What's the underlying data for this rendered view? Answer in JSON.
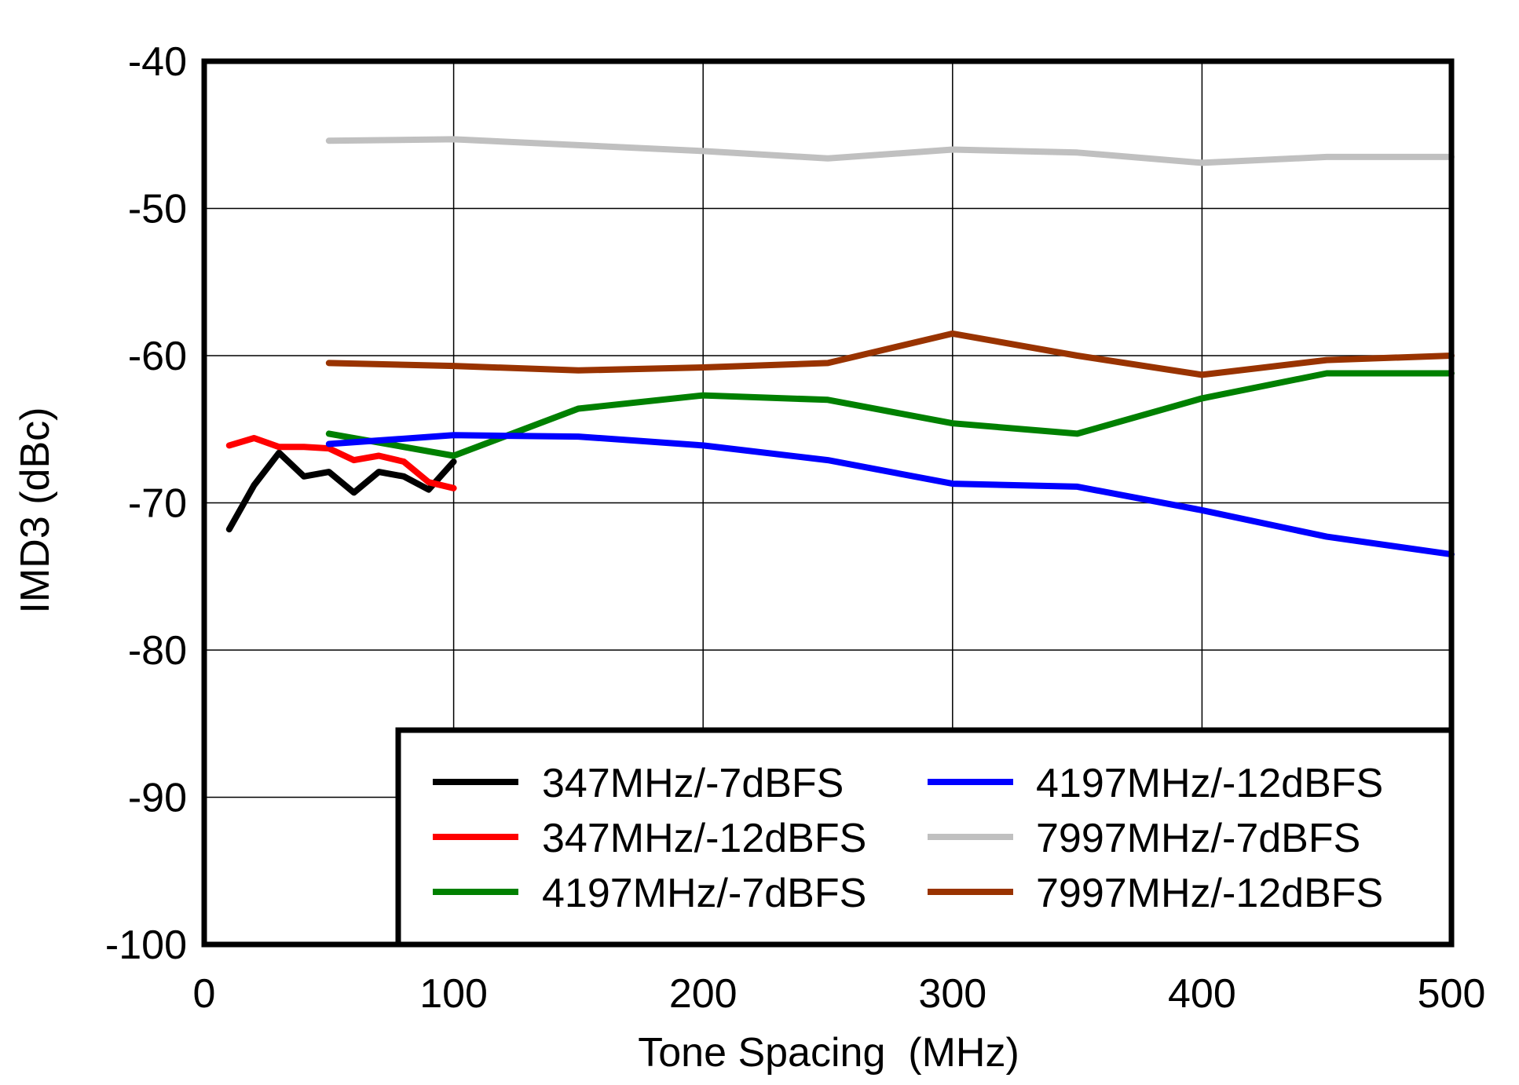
{
  "chart_data": {
    "type": "line",
    "title": "",
    "xlabel": "Tone Spacing  (MHz)",
    "ylabel": "IMD3 (dBc)",
    "xlim": [
      0,
      500
    ],
    "ylim": [
      -100,
      -40
    ],
    "xticks": [
      "0",
      "100",
      "200",
      "300",
      "400",
      "500"
    ],
    "yticks": [
      "-40",
      "-50",
      "-60",
      "-70",
      "-80",
      "-90",
      "-100"
    ],
    "grid": true,
    "legend_position": "lower right",
    "series": [
      {
        "name": "347MHz/-7dBFS",
        "color": "#000000",
        "x": [
          10,
          20,
          30,
          40,
          50,
          60,
          70,
          80,
          90,
          100
        ],
        "values": [
          -71.8,
          -68.8,
          -66.6,
          -68.2,
          -67.9,
          -69.3,
          -67.9,
          -68.2,
          -69.1,
          -67.2
        ]
      },
      {
        "name": "347MHz/-12dBFS",
        "color": "#ff0000",
        "x": [
          10,
          20,
          30,
          40,
          50,
          60,
          70,
          80,
          90,
          100
        ],
        "values": [
          -66.1,
          -65.6,
          -66.2,
          -66.2,
          -66.3,
          -67.1,
          -66.8,
          -67.2,
          -68.6,
          -69.0
        ]
      },
      {
        "name": "4197MHz/-7dBFS",
        "color": "#008000",
        "x": [
          50,
          100,
          150,
          200,
          250,
          300,
          350,
          400,
          450,
          500
        ],
        "values": [
          -65.3,
          -66.8,
          -63.6,
          -62.7,
          -63.0,
          -64.6,
          -65.3,
          -62.9,
          -61.2,
          -61.2
        ]
      },
      {
        "name": "4197MHz/-12dBFS",
        "color": "#0000ff",
        "x": [
          50,
          100,
          150,
          200,
          250,
          300,
          350,
          400,
          450,
          500
        ],
        "values": [
          -66.0,
          -65.4,
          -65.5,
          -66.1,
          -67.1,
          -68.7,
          -68.9,
          -70.5,
          -72.3,
          -73.5
        ]
      },
      {
        "name": "7997MHz/-7dBFS",
        "color": "#c0c0c0",
        "x": [
          50,
          100,
          150,
          200,
          250,
          300,
          350,
          400,
          450,
          500
        ],
        "values": [
          -45.4,
          -45.3,
          -45.7,
          -46.1,
          -46.6,
          -46.0,
          -46.2,
          -46.9,
          -46.5,
          -46.5
        ]
      },
      {
        "name": "7997MHz/-12dBFS",
        "color": "#993300",
        "x": [
          50,
          100,
          150,
          200,
          250,
          300,
          350,
          400,
          450,
          500
        ],
        "values": [
          -60.5,
          -60.7,
          -61.0,
          -60.8,
          -60.5,
          -58.5,
          -60.0,
          -61.3,
          -60.3,
          -60.0
        ]
      }
    ]
  },
  "legend": {
    "items": [
      {
        "label": "347MHz/-7dBFS",
        "color": "#000000"
      },
      {
        "label": "347MHz/-12dBFS",
        "color": "#ff0000"
      },
      {
        "label": "4197MHz/-7dBFS",
        "color": "#008000"
      },
      {
        "label": "4197MHz/-12dBFS",
        "color": "#0000ff"
      },
      {
        "label": "7997MHz/-7dBFS",
        "color": "#c0c0c0"
      },
      {
        "label": "7997MHz/-12dBFS",
        "color": "#993300"
      }
    ]
  }
}
